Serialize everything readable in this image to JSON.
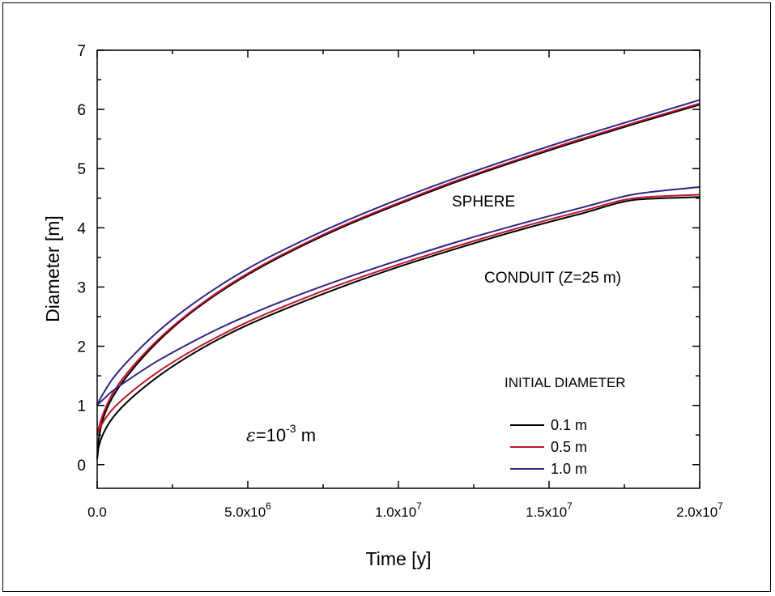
{
  "chart_data": {
    "type": "line",
    "xlabel": "Time [y]",
    "ylabel": "Diameter [m]",
    "xlim": [
      0,
      20000000
    ],
    "ylim": [
      -0.4,
      7
    ],
    "xticks": [
      {
        "value": 0,
        "label": "0.0",
        "exp": ""
      },
      {
        "value": 5000000,
        "label": "5.0x10",
        "exp": "6"
      },
      {
        "value": 10000000,
        "label": "1.0x10",
        "exp": "7"
      },
      {
        "value": 15000000,
        "label": "1.5x10",
        "exp": "7"
      },
      {
        "value": 20000000,
        "label": "2.0x10",
        "exp": "7"
      }
    ],
    "yticks": [
      0,
      1,
      2,
      3,
      4,
      5,
      6,
      7
    ],
    "grid": false,
    "annotations": {
      "sphere": "SPHERE",
      "conduit": "CONDUIT (Z=25 m)",
      "epsilon_symbol": "ε",
      "epsilon_base": "=10",
      "epsilon_exp": "-3",
      "epsilon_unit": " m"
    },
    "legend": {
      "title": "INITIAL DIAMETER",
      "placement": "bottom-right"
    },
    "x": [
      0,
      50000,
      200000,
      500000,
      1000000,
      2000000,
      3000000,
      4000000,
      5000000,
      6000000,
      8000000,
      10000000,
      12000000,
      14000000,
      16000000,
      18000000,
      20000000
    ],
    "series": [
      {
        "name": "0.1 m",
        "group": "sphere",
        "color": "#000000",
        "values": [
          0.1,
          0.42,
          0.78,
          1.13,
          1.5,
          2.07,
          2.52,
          2.89,
          3.21,
          3.49,
          3.98,
          4.4,
          4.79,
          5.14,
          5.47,
          5.78,
          6.08
        ]
      },
      {
        "name": "0.5 m",
        "group": "sphere",
        "color": "#c0142c",
        "values": [
          0.5,
          0.62,
          0.86,
          1.19,
          1.55,
          2.1,
          2.54,
          2.91,
          3.23,
          3.51,
          4.0,
          4.42,
          4.81,
          5.16,
          5.49,
          5.8,
          6.1
        ]
      },
      {
        "name": "1.0 m",
        "group": "sphere",
        "color": "#2e2585",
        "values": [
          1.0,
          1.06,
          1.2,
          1.44,
          1.74,
          2.24,
          2.65,
          3.0,
          3.31,
          3.58,
          4.06,
          4.48,
          4.86,
          5.21,
          5.54,
          5.85,
          6.16
        ]
      },
      {
        "name": "0.1 m",
        "group": "conduit",
        "color": "#000000",
        "values": [
          0.1,
          0.3,
          0.52,
          0.78,
          1.06,
          1.48,
          1.82,
          2.11,
          2.36,
          2.58,
          2.98,
          3.34,
          3.66,
          3.96,
          4.23,
          4.48,
          4.52
        ]
      },
      {
        "name": "0.5 m",
        "group": "conduit",
        "color": "#c0142c",
        "values": [
          0.5,
          0.57,
          0.72,
          0.93,
          1.17,
          1.56,
          1.88,
          2.16,
          2.41,
          2.63,
          3.03,
          3.38,
          3.7,
          4.0,
          4.27,
          4.51,
          4.56
        ]
      },
      {
        "name": "1.0 m",
        "group": "conduit",
        "color": "#2e2585",
        "values": [
          1.0,
          1.03,
          1.1,
          1.24,
          1.42,
          1.75,
          2.03,
          2.29,
          2.52,
          2.73,
          3.11,
          3.45,
          3.77,
          4.06,
          4.33,
          4.58,
          4.69
        ]
      }
    ]
  }
}
